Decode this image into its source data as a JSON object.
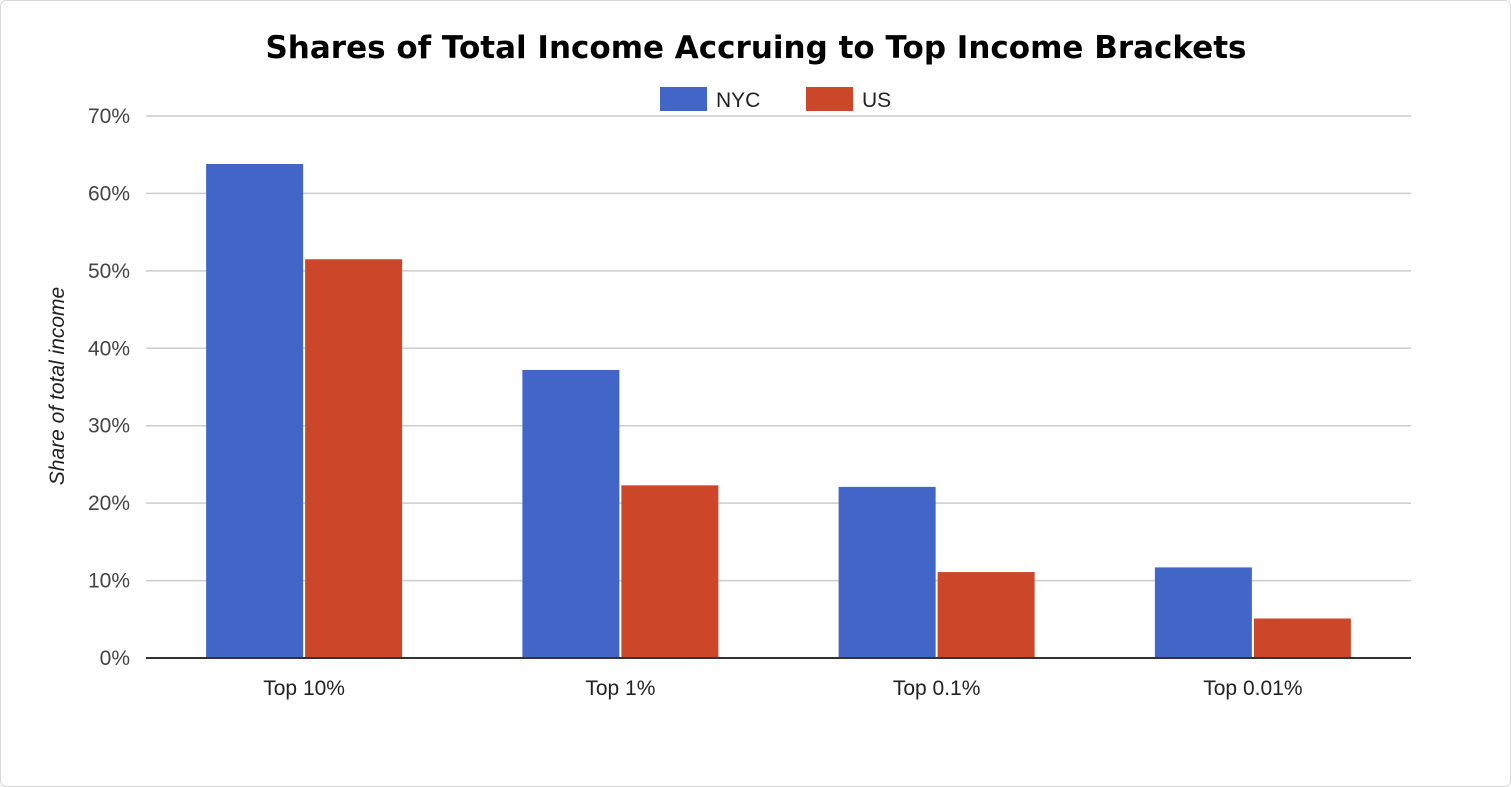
{
  "chart_data": {
    "type": "bar",
    "title": "Shares of Total Income Accruing to Top Income Brackets",
    "xlabel": "",
    "ylabel": "Share of total income",
    "categories": [
      "Top 10%",
      "Top 1%",
      "Top 0.1%",
      "Top 0.01%"
    ],
    "series": [
      {
        "name": "NYC",
        "color": "#4166c8",
        "values": [
          63.8,
          37.2,
          22.1,
          11.7
        ]
      },
      {
        "name": "US",
        "color": "#cc4729",
        "values": [
          51.5,
          22.3,
          11.1,
          5.1
        ]
      }
    ],
    "ylim": [
      0,
      70
    ],
    "yticks": [
      0,
      10,
      20,
      30,
      40,
      50,
      60,
      70
    ],
    "ytick_labels": [
      "0%",
      "10%",
      "20%",
      "30%",
      "40%",
      "50%",
      "60%",
      "70%"
    ],
    "grid": true,
    "legend_position": "top-center"
  }
}
